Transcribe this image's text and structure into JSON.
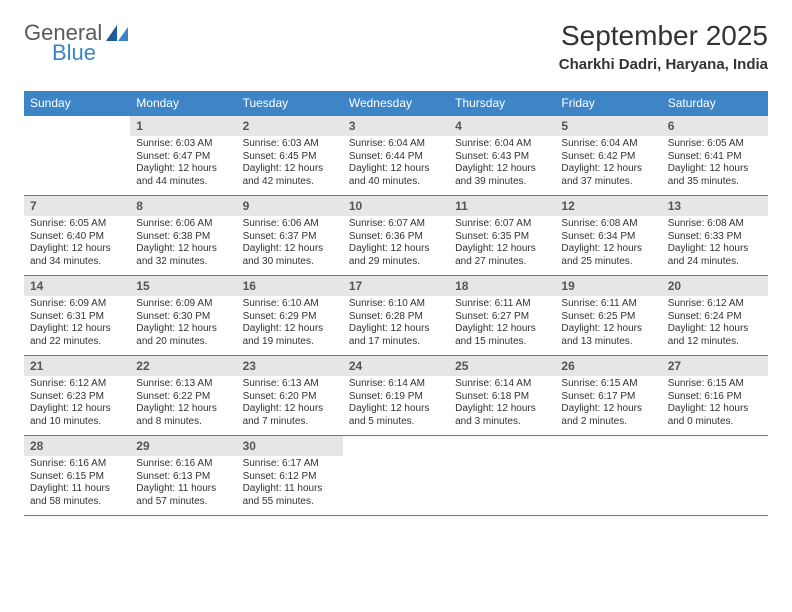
{
  "logo": {
    "top": "General",
    "bottom": "Blue"
  },
  "title": "September 2025",
  "location": "Charkhi Dadri, Haryana, India",
  "colors": {
    "header_bg": "#3d85c6",
    "header_text": "#ffffff",
    "daynum_bg": "#e6e6e6",
    "rule": "#3d85c6",
    "logo_gray": "#5a5a5a",
    "logo_blue": "#3d85c6"
  },
  "fonts": {
    "title_size_pt": 21,
    "location_size_pt": 11,
    "weekday_size_pt": 9,
    "daynum_size_pt": 9,
    "body_size_pt": 7.5
  },
  "weekdays": [
    "Sunday",
    "Monday",
    "Tuesday",
    "Wednesday",
    "Thursday",
    "Friday",
    "Saturday"
  ],
  "weeks": [
    [
      null,
      {
        "n": "1",
        "sr": "Sunrise: 6:03 AM",
        "ss": "Sunset: 6:47 PM",
        "dl": "Daylight: 12 hours and 44 minutes."
      },
      {
        "n": "2",
        "sr": "Sunrise: 6:03 AM",
        "ss": "Sunset: 6:45 PM",
        "dl": "Daylight: 12 hours and 42 minutes."
      },
      {
        "n": "3",
        "sr": "Sunrise: 6:04 AM",
        "ss": "Sunset: 6:44 PM",
        "dl": "Daylight: 12 hours and 40 minutes."
      },
      {
        "n": "4",
        "sr": "Sunrise: 6:04 AM",
        "ss": "Sunset: 6:43 PM",
        "dl": "Daylight: 12 hours and 39 minutes."
      },
      {
        "n": "5",
        "sr": "Sunrise: 6:04 AM",
        "ss": "Sunset: 6:42 PM",
        "dl": "Daylight: 12 hours and 37 minutes."
      },
      {
        "n": "6",
        "sr": "Sunrise: 6:05 AM",
        "ss": "Sunset: 6:41 PM",
        "dl": "Daylight: 12 hours and 35 minutes."
      }
    ],
    [
      {
        "n": "7",
        "sr": "Sunrise: 6:05 AM",
        "ss": "Sunset: 6:40 PM",
        "dl": "Daylight: 12 hours and 34 minutes."
      },
      {
        "n": "8",
        "sr": "Sunrise: 6:06 AM",
        "ss": "Sunset: 6:38 PM",
        "dl": "Daylight: 12 hours and 32 minutes."
      },
      {
        "n": "9",
        "sr": "Sunrise: 6:06 AM",
        "ss": "Sunset: 6:37 PM",
        "dl": "Daylight: 12 hours and 30 minutes."
      },
      {
        "n": "10",
        "sr": "Sunrise: 6:07 AM",
        "ss": "Sunset: 6:36 PM",
        "dl": "Daylight: 12 hours and 29 minutes."
      },
      {
        "n": "11",
        "sr": "Sunrise: 6:07 AM",
        "ss": "Sunset: 6:35 PM",
        "dl": "Daylight: 12 hours and 27 minutes."
      },
      {
        "n": "12",
        "sr": "Sunrise: 6:08 AM",
        "ss": "Sunset: 6:34 PM",
        "dl": "Daylight: 12 hours and 25 minutes."
      },
      {
        "n": "13",
        "sr": "Sunrise: 6:08 AM",
        "ss": "Sunset: 6:33 PM",
        "dl": "Daylight: 12 hours and 24 minutes."
      }
    ],
    [
      {
        "n": "14",
        "sr": "Sunrise: 6:09 AM",
        "ss": "Sunset: 6:31 PM",
        "dl": "Daylight: 12 hours and 22 minutes."
      },
      {
        "n": "15",
        "sr": "Sunrise: 6:09 AM",
        "ss": "Sunset: 6:30 PM",
        "dl": "Daylight: 12 hours and 20 minutes."
      },
      {
        "n": "16",
        "sr": "Sunrise: 6:10 AM",
        "ss": "Sunset: 6:29 PM",
        "dl": "Daylight: 12 hours and 19 minutes."
      },
      {
        "n": "17",
        "sr": "Sunrise: 6:10 AM",
        "ss": "Sunset: 6:28 PM",
        "dl": "Daylight: 12 hours and 17 minutes."
      },
      {
        "n": "18",
        "sr": "Sunrise: 6:11 AM",
        "ss": "Sunset: 6:27 PM",
        "dl": "Daylight: 12 hours and 15 minutes."
      },
      {
        "n": "19",
        "sr": "Sunrise: 6:11 AM",
        "ss": "Sunset: 6:25 PM",
        "dl": "Daylight: 12 hours and 13 minutes."
      },
      {
        "n": "20",
        "sr": "Sunrise: 6:12 AM",
        "ss": "Sunset: 6:24 PM",
        "dl": "Daylight: 12 hours and 12 minutes."
      }
    ],
    [
      {
        "n": "21",
        "sr": "Sunrise: 6:12 AM",
        "ss": "Sunset: 6:23 PM",
        "dl": "Daylight: 12 hours and 10 minutes."
      },
      {
        "n": "22",
        "sr": "Sunrise: 6:13 AM",
        "ss": "Sunset: 6:22 PM",
        "dl": "Daylight: 12 hours and 8 minutes."
      },
      {
        "n": "23",
        "sr": "Sunrise: 6:13 AM",
        "ss": "Sunset: 6:20 PM",
        "dl": "Daylight: 12 hours and 7 minutes."
      },
      {
        "n": "24",
        "sr": "Sunrise: 6:14 AM",
        "ss": "Sunset: 6:19 PM",
        "dl": "Daylight: 12 hours and 5 minutes."
      },
      {
        "n": "25",
        "sr": "Sunrise: 6:14 AM",
        "ss": "Sunset: 6:18 PM",
        "dl": "Daylight: 12 hours and 3 minutes."
      },
      {
        "n": "26",
        "sr": "Sunrise: 6:15 AM",
        "ss": "Sunset: 6:17 PM",
        "dl": "Daylight: 12 hours and 2 minutes."
      },
      {
        "n": "27",
        "sr": "Sunrise: 6:15 AM",
        "ss": "Sunset: 6:16 PM",
        "dl": "Daylight: 12 hours and 0 minutes."
      }
    ],
    [
      {
        "n": "28",
        "sr": "Sunrise: 6:16 AM",
        "ss": "Sunset: 6:15 PM",
        "dl": "Daylight: 11 hours and 58 minutes."
      },
      {
        "n": "29",
        "sr": "Sunrise: 6:16 AM",
        "ss": "Sunset: 6:13 PM",
        "dl": "Daylight: 11 hours and 57 minutes."
      },
      {
        "n": "30",
        "sr": "Sunrise: 6:17 AM",
        "ss": "Sunset: 6:12 PM",
        "dl": "Daylight: 11 hours and 55 minutes."
      },
      null,
      null,
      null,
      null
    ]
  ]
}
